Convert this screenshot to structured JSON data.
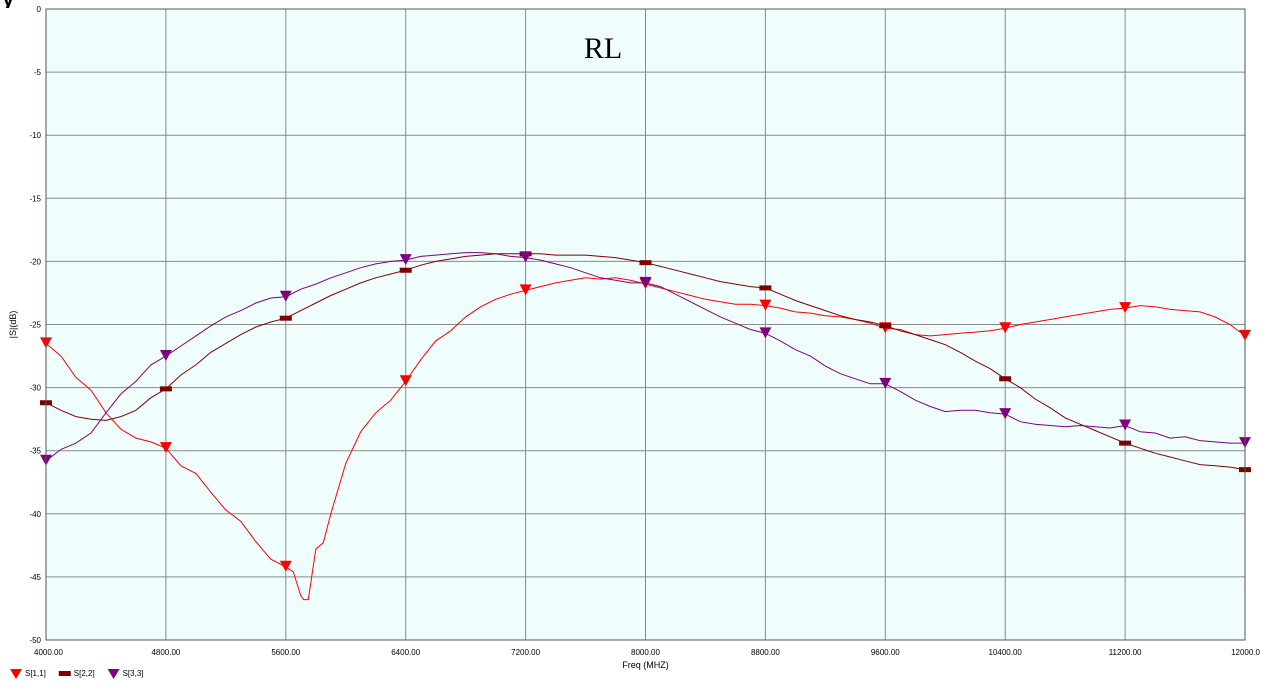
{
  "top_glyph": "y",
  "chart_data": {
    "type": "line",
    "title": "RL",
    "xlabel": "Freq (MHZ)",
    "ylabel": "|S|(dB)",
    "xlim": [
      4000,
      12000
    ],
    "ylim": [
      -50,
      0
    ],
    "x_ticks": [
      4000,
      4800,
      5600,
      6400,
      7200,
      8000,
      8800,
      9600,
      10400,
      11200,
      12000
    ],
    "x_tick_labels": [
      "4000.00",
      "4800.00",
      "5600.00",
      "6400.00",
      "7200.00",
      "8000.00",
      "8800.00",
      "9600.00",
      "10400.00",
      "11200.00",
      "12000.0"
    ],
    "y_ticks": [
      0,
      -5,
      -10,
      -15,
      -20,
      -25,
      -30,
      -35,
      -40,
      -45,
      -50
    ],
    "y_tick_labels": [
      "0",
      "-5",
      "-10",
      "-15",
      "-20",
      "-25",
      "-30",
      "-35",
      "-40",
      "-45",
      "-50"
    ],
    "grid": true,
    "legend_position": "bottom-left",
    "plot_background": "#f0fdfd",
    "grid_color": "#8a8a8a",
    "series": [
      {
        "name": "S[1,1]",
        "color": "#ff0000",
        "marker": "triangle-down",
        "x": [
          4000,
          4100,
          4200,
          4300,
          4400,
          4500,
          4600,
          4700,
          4800,
          4900,
          5000,
          5100,
          5200,
          5300,
          5400,
          5500,
          5600,
          5650,
          5700,
          5720,
          5750,
          5800,
          5850,
          5900,
          5950,
          6000,
          6100,
          6200,
          6300,
          6400,
          6500,
          6600,
          6700,
          6800,
          6900,
          7000,
          7100,
          7200,
          7300,
          7400,
          7500,
          7600,
          7700,
          7800,
          7900,
          8000,
          8100,
          8200,
          8300,
          8400,
          8500,
          8600,
          8700,
          8800,
          8900,
          9000,
          9100,
          9200,
          9300,
          9400,
          9500,
          9600,
          9700,
          9800,
          9900,
          10000,
          10100,
          10200,
          10300,
          10400,
          10500,
          10600,
          10700,
          10800,
          10900,
          11000,
          11100,
          11200,
          11300,
          11400,
          11500,
          11600,
          11700,
          11800,
          11900,
          12000
        ],
        "y": [
          -26.5,
          -27.5,
          -29.2,
          -30.2,
          -32.0,
          -33.3,
          -34.0,
          -34.3,
          -34.8,
          -36.2,
          -36.8,
          -38.3,
          -39.7,
          -40.6,
          -42.2,
          -43.6,
          -44.2,
          -44.6,
          -46.5,
          -46.8,
          -46.8,
          -42.8,
          -42.3,
          -40.0,
          -38.0,
          -36.0,
          -33.5,
          -32.0,
          -31.0,
          -29.5,
          -27.8,
          -26.3,
          -25.5,
          -24.4,
          -23.6,
          -23.0,
          -22.6,
          -22.3,
          -22.0,
          -21.7,
          -21.5,
          -21.3,
          -21.4,
          -21.3,
          -21.5,
          -21.8,
          -22.1,
          -22.4,
          -22.7,
          -23.0,
          -23.2,
          -23.4,
          -23.4,
          -23.5,
          -23.7,
          -24.0,
          -24.1,
          -24.3,
          -24.4,
          -24.6,
          -24.9,
          -25.3,
          -25.4,
          -25.8,
          -25.9,
          -25.8,
          -25.7,
          -25.6,
          -25.5,
          -25.3,
          -25.0,
          -24.8,
          -24.6,
          -24.4,
          -24.2,
          -24.0,
          -23.8,
          -23.7,
          -23.5,
          -23.6,
          -23.8,
          -23.9,
          -24.0,
          -24.4,
          -25.0,
          -25.9
        ],
        "marker_x": [
          4000,
          4800,
          5600,
          6400,
          7200,
          8000,
          8800,
          9600,
          10400,
          11200,
          12000
        ]
      },
      {
        "name": "S[2,2]",
        "color": "#800000",
        "marker": "dash",
        "x": [
          4000,
          4100,
          4200,
          4300,
          4400,
          4500,
          4600,
          4700,
          4800,
          4900,
          5000,
          5100,
          5200,
          5300,
          5400,
          5500,
          5600,
          5700,
          5800,
          5900,
          6000,
          6100,
          6200,
          6300,
          6400,
          6500,
          6600,
          6700,
          6800,
          6900,
          7000,
          7100,
          7200,
          7300,
          7400,
          7500,
          7600,
          7700,
          7800,
          7900,
          8000,
          8100,
          8200,
          8300,
          8400,
          8500,
          8600,
          8700,
          8800,
          8900,
          9000,
          9100,
          9200,
          9300,
          9400,
          9500,
          9600,
          9700,
          9800,
          9900,
          10000,
          10100,
          10200,
          10300,
          10400,
          10500,
          10600,
          10700,
          10800,
          10900,
          11000,
          11100,
          11200,
          11300,
          11400,
          11500,
          11600,
          11700,
          11800,
          11900,
          12000
        ],
        "y": [
          -31.2,
          -31.8,
          -32.3,
          -32.5,
          -32.6,
          -32.3,
          -31.8,
          -30.8,
          -30.1,
          -29.0,
          -28.2,
          -27.2,
          -26.5,
          -25.8,
          -25.2,
          -24.8,
          -24.5,
          -23.9,
          -23.3,
          -22.7,
          -22.2,
          -21.7,
          -21.3,
          -21.0,
          -20.7,
          -20.3,
          -20.0,
          -19.8,
          -19.6,
          -19.5,
          -19.4,
          -19.4,
          -19.4,
          -19.4,
          -19.5,
          -19.5,
          -19.5,
          -19.6,
          -19.7,
          -19.9,
          -20.1,
          -20.4,
          -20.7,
          -21.0,
          -21.3,
          -21.6,
          -21.8,
          -22.0,
          -22.1,
          -22.6,
          -23.1,
          -23.5,
          -23.9,
          -24.3,
          -24.6,
          -24.8,
          -25.1,
          -25.5,
          -25.8,
          -26.2,
          -26.6,
          -27.2,
          -27.9,
          -28.5,
          -29.3,
          -30.0,
          -30.9,
          -31.6,
          -32.4,
          -32.9,
          -33.4,
          -33.9,
          -34.4,
          -34.8,
          -35.2,
          -35.5,
          -35.8,
          -36.1,
          -36.2,
          -36.3,
          -36.5
        ],
        "marker_x": [
          4000,
          4800,
          5600,
          6400,
          7200,
          8000,
          8800,
          9600,
          10400,
          11200,
          12000
        ]
      },
      {
        "name": "S[3,3]",
        "color": "#800080",
        "marker": "triangle-down",
        "x": [
          4000,
          4100,
          4200,
          4300,
          4400,
          4500,
          4600,
          4700,
          4800,
          4900,
          5000,
          5100,
          5200,
          5300,
          5400,
          5500,
          5600,
          5700,
          5800,
          5900,
          6000,
          6100,
          6200,
          6300,
          6400,
          6500,
          6600,
          6700,
          6800,
          6900,
          7000,
          7100,
          7200,
          7300,
          7400,
          7500,
          7600,
          7700,
          7800,
          7900,
          8000,
          8100,
          8200,
          8300,
          8400,
          8500,
          8600,
          8700,
          8800,
          8900,
          9000,
          9100,
          9200,
          9300,
          9400,
          9500,
          9600,
          9700,
          9800,
          9900,
          10000,
          10100,
          10200,
          10300,
          10400,
          10500,
          10600,
          10700,
          10800,
          10900,
          11000,
          11100,
          11200,
          11300,
          11400,
          11500,
          11600,
          11700,
          11800,
          11900,
          12000
        ],
        "y": [
          -35.8,
          -34.9,
          -34.4,
          -33.6,
          -32.0,
          -30.5,
          -29.5,
          -28.2,
          -27.5,
          -26.7,
          -25.9,
          -25.1,
          -24.4,
          -23.9,
          -23.3,
          -22.9,
          -22.8,
          -22.2,
          -21.8,
          -21.3,
          -20.9,
          -20.5,
          -20.2,
          -20.0,
          -19.9,
          -19.6,
          -19.5,
          -19.4,
          -19.3,
          -19.3,
          -19.4,
          -19.6,
          -19.7,
          -19.9,
          -20.2,
          -20.5,
          -20.9,
          -21.3,
          -21.5,
          -21.7,
          -21.7,
          -22.0,
          -22.6,
          -23.2,
          -23.8,
          -24.4,
          -24.9,
          -25.4,
          -25.7,
          -26.3,
          -27.0,
          -27.5,
          -28.3,
          -28.9,
          -29.3,
          -29.7,
          -29.7,
          -30.3,
          -31.0,
          -31.5,
          -31.9,
          -31.8,
          -31.8,
          -32.0,
          -32.1,
          -32.7,
          -32.9,
          -33.0,
          -33.1,
          -33.0,
          -33.1,
          -33.2,
          -33.0,
          -33.5,
          -33.6,
          -34.0,
          -33.9,
          -34.2,
          -34.3,
          -34.4,
          -34.4
        ],
        "marker_x": [
          4000,
          4800,
          5600,
          6400,
          7200,
          8000,
          8800,
          9600,
          10400,
          11200,
          12000
        ]
      }
    ]
  }
}
